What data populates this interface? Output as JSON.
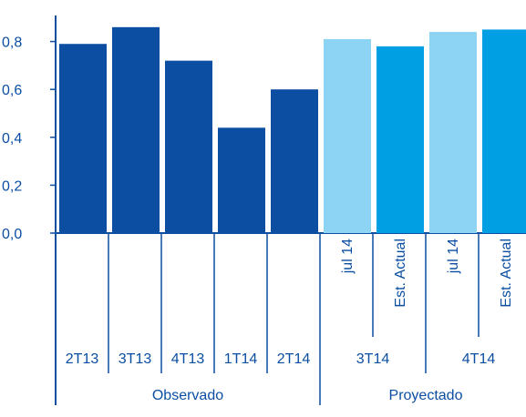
{
  "chart_data": {
    "type": "bar",
    "title": "",
    "xlabel": "",
    "ylabel": "",
    "ylim": [
      0,
      1.0
    ],
    "yticks": [
      "0,0",
      "0,2",
      "0,4",
      "0,6",
      "0,8"
    ],
    "grid": false,
    "legend": "none",
    "categories": [
      "2T13",
      "3T13",
      "4T13",
      "1T14",
      "2T14",
      "jul 14",
      "Est. Actual",
      "jul 14",
      "Est. Actual"
    ],
    "quarter_labels": [
      "2T13",
      "3T13",
      "4T13",
      "1T14",
      "2T14",
      "3T14",
      "4T14"
    ],
    "period_groups": [
      "Observado",
      "Proyectado"
    ],
    "bars": [
      {
        "label": "2T13",
        "quarter": "2T13",
        "group": "Observado",
        "value": 0.79,
        "color": "#0b4ea2"
      },
      {
        "label": "3T13",
        "quarter": "3T13",
        "group": "Observado",
        "value": 0.86,
        "color": "#0b4ea2"
      },
      {
        "label": "4T13",
        "quarter": "4T13",
        "group": "Observado",
        "value": 0.72,
        "color": "#0b4ea2"
      },
      {
        "label": "1T14",
        "quarter": "1T14",
        "group": "Observado",
        "value": 0.44,
        "color": "#0b4ea2"
      },
      {
        "label": "2T14",
        "quarter": "2T14",
        "group": "Observado",
        "value": 0.6,
        "color": "#0b4ea2"
      },
      {
        "label": "jul 14",
        "quarter": "3T14",
        "group": "Proyectado",
        "value": 0.81,
        "color": "#8dd3f4"
      },
      {
        "label": "Est. Actual",
        "quarter": "3T14",
        "group": "Proyectado",
        "value": 0.78,
        "color": "#009fe3"
      },
      {
        "label": "jul 14",
        "quarter": "4T14",
        "group": "Proyectado",
        "value": 0.84,
        "color": "#8dd3f4"
      },
      {
        "label": "Est. Actual",
        "quarter": "4T14",
        "group": "Proyectado",
        "value": 0.85,
        "color": "#009fe3"
      }
    ],
    "colors": {
      "observed": "#0b4ea2",
      "projected_jul14": "#8dd3f4",
      "projected_current": "#009fe3",
      "axis": "#0b4ea2",
      "text": "#0b4ea2"
    }
  }
}
